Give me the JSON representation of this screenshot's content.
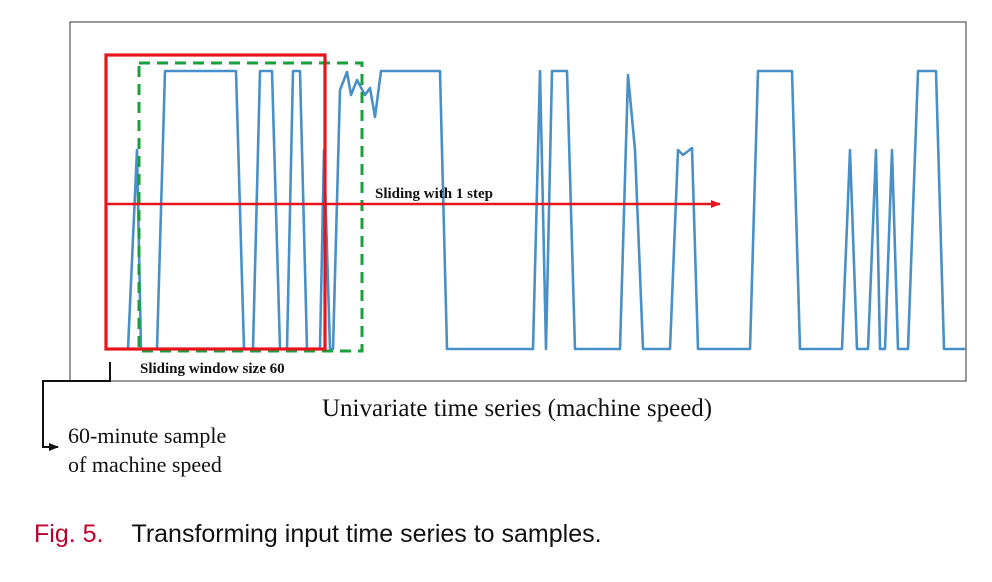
{
  "diagram": {
    "slide_label": "Sliding with 1 step",
    "window_label": "Sliding window size 60",
    "series_label": "Univariate time series (machine speed)",
    "sample_label_line1": "60-minute sample",
    "sample_label_line2": "of machine speed"
  },
  "caption": {
    "number": "Fig. 5.",
    "text": "Transforming input time series to samples."
  },
  "colors": {
    "series": "#4a90c8",
    "first_window": "#e8141c",
    "next_window": "#18a03c",
    "slide_arrow": "#e8141c",
    "frame": "#555555",
    "caption_number": "#c0002a"
  }
}
